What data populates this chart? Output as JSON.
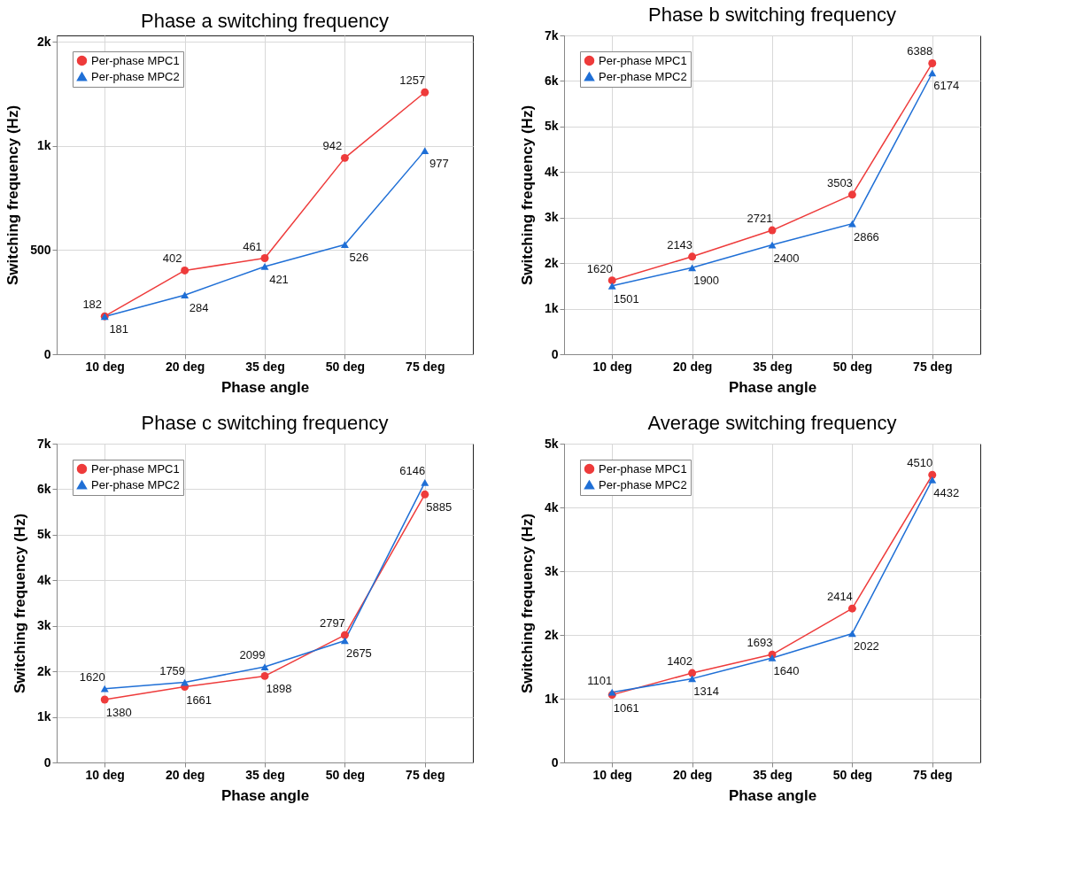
{
  "chart_data": [
    {
      "type": "line",
      "title": "Phase a switching frequency",
      "xlabel": "Phase angle",
      "ylabel": "Switching frequency (Hz)",
      "categories": [
        "10 deg",
        "20 deg",
        "35 deg",
        "50 deg",
        "75 deg"
      ],
      "ylim": [
        0,
        1530
      ],
      "yticks": [
        0,
        500,
        {
          "value": 1000,
          "label": "1k"
        },
        {
          "value": 1500,
          "label": "2k"
        }
      ],
      "grid": true,
      "legend": "top left",
      "data_labels": true,
      "series": [
        {
          "name": "Per-phase MPC1",
          "color": "#ee3b3b",
          "marker": "circle",
          "values": [
            182,
            402,
            461,
            942,
            1257
          ]
        },
        {
          "name": "Per-phase MPC2",
          "color": "#1f6fd6",
          "marker": "triangle",
          "values": [
            181,
            284,
            421,
            526,
            977
          ]
        }
      ]
    },
    {
      "type": "line",
      "title": "Phase b switching frequency",
      "xlabel": "Phase angle",
      "ylabel": "Switching frequency (Hz)",
      "categories": [
        "10 deg",
        "20 deg",
        "35 deg",
        "50 deg",
        "75 deg"
      ],
      "ylim": [
        0,
        7000
      ],
      "yticks": [
        0,
        {
          "value": 1000,
          "label": "1k"
        },
        {
          "value": 2000,
          "label": "2k"
        },
        {
          "value": 3000,
          "label": "3k"
        },
        {
          "value": 4000,
          "label": "4k"
        },
        {
          "value": 5000,
          "label": "5k"
        },
        {
          "value": 6000,
          "label": "6k"
        },
        {
          "value": 7000,
          "label": "7k"
        }
      ],
      "grid": true,
      "legend": "top left",
      "data_labels": true,
      "series": [
        {
          "name": "Per-phase MPC1",
          "color": "#ee3b3b",
          "marker": "circle",
          "values": [
            1620,
            2143,
            2721,
            3503,
            6388
          ]
        },
        {
          "name": "Per-phase MPC2",
          "color": "#1f6fd6",
          "marker": "triangle",
          "values": [
            1501,
            1900,
            2400,
            2866,
            6174
          ]
        }
      ]
    },
    {
      "type": "line",
      "title": "Phase c switching frequency",
      "xlabel": "Phase angle",
      "ylabel": "Switching frequency (Hz)",
      "categories": [
        "10 deg",
        "20 deg",
        "35 deg",
        "50 deg",
        "75 deg"
      ],
      "ylim": [
        0,
        7000
      ],
      "yticks": [
        0,
        {
          "value": 1000,
          "label": "1k"
        },
        {
          "value": 2000,
          "label": "2k"
        },
        {
          "value": 3000,
          "label": "3k"
        },
        {
          "value": 4000,
          "label": "4k"
        },
        {
          "value": 5000,
          "label": "5k"
        },
        {
          "value": 6000,
          "label": "6k"
        },
        {
          "value": 7000,
          "label": "7k"
        }
      ],
      "grid": true,
      "legend": "top left",
      "data_labels": true,
      "series": [
        {
          "name": "Per-phase MPC1",
          "color": "#ee3b3b",
          "marker": "circle",
          "values": [
            1380,
            1661,
            1898,
            2797,
            5885
          ]
        },
        {
          "name": "Per-phase MPC2",
          "color": "#1f6fd6",
          "marker": "triangle",
          "values": [
            1620,
            1759,
            2099,
            2675,
            6146
          ]
        }
      ]
    },
    {
      "type": "line",
      "title": "Average switching frequency",
      "xlabel": "Phase angle",
      "ylabel": "Switching frequency (Hz)",
      "categories": [
        "10 deg",
        "20 deg",
        "35 deg",
        "50 deg",
        "75 deg"
      ],
      "ylim": [
        0,
        5000
      ],
      "yticks": [
        0,
        {
          "value": 1000,
          "label": "1k"
        },
        {
          "value": 2000,
          "label": "2k"
        },
        {
          "value": 3000,
          "label": "3k"
        },
        {
          "value": 4000,
          "label": "4k"
        },
        {
          "value": 5000,
          "label": "5k"
        }
      ],
      "grid": true,
      "legend": "top left",
      "data_labels": true,
      "series": [
        {
          "name": "Per-phase MPC1",
          "color": "#ee3b3b",
          "marker": "circle",
          "values": [
            1061,
            1402,
            1693,
            2414,
            4510
          ]
        },
        {
          "name": "Per-phase MPC2",
          "color": "#1f6fd6",
          "marker": "triangle",
          "values": [
            1101,
            1314,
            1640,
            2022,
            4432
          ]
        }
      ]
    }
  ]
}
